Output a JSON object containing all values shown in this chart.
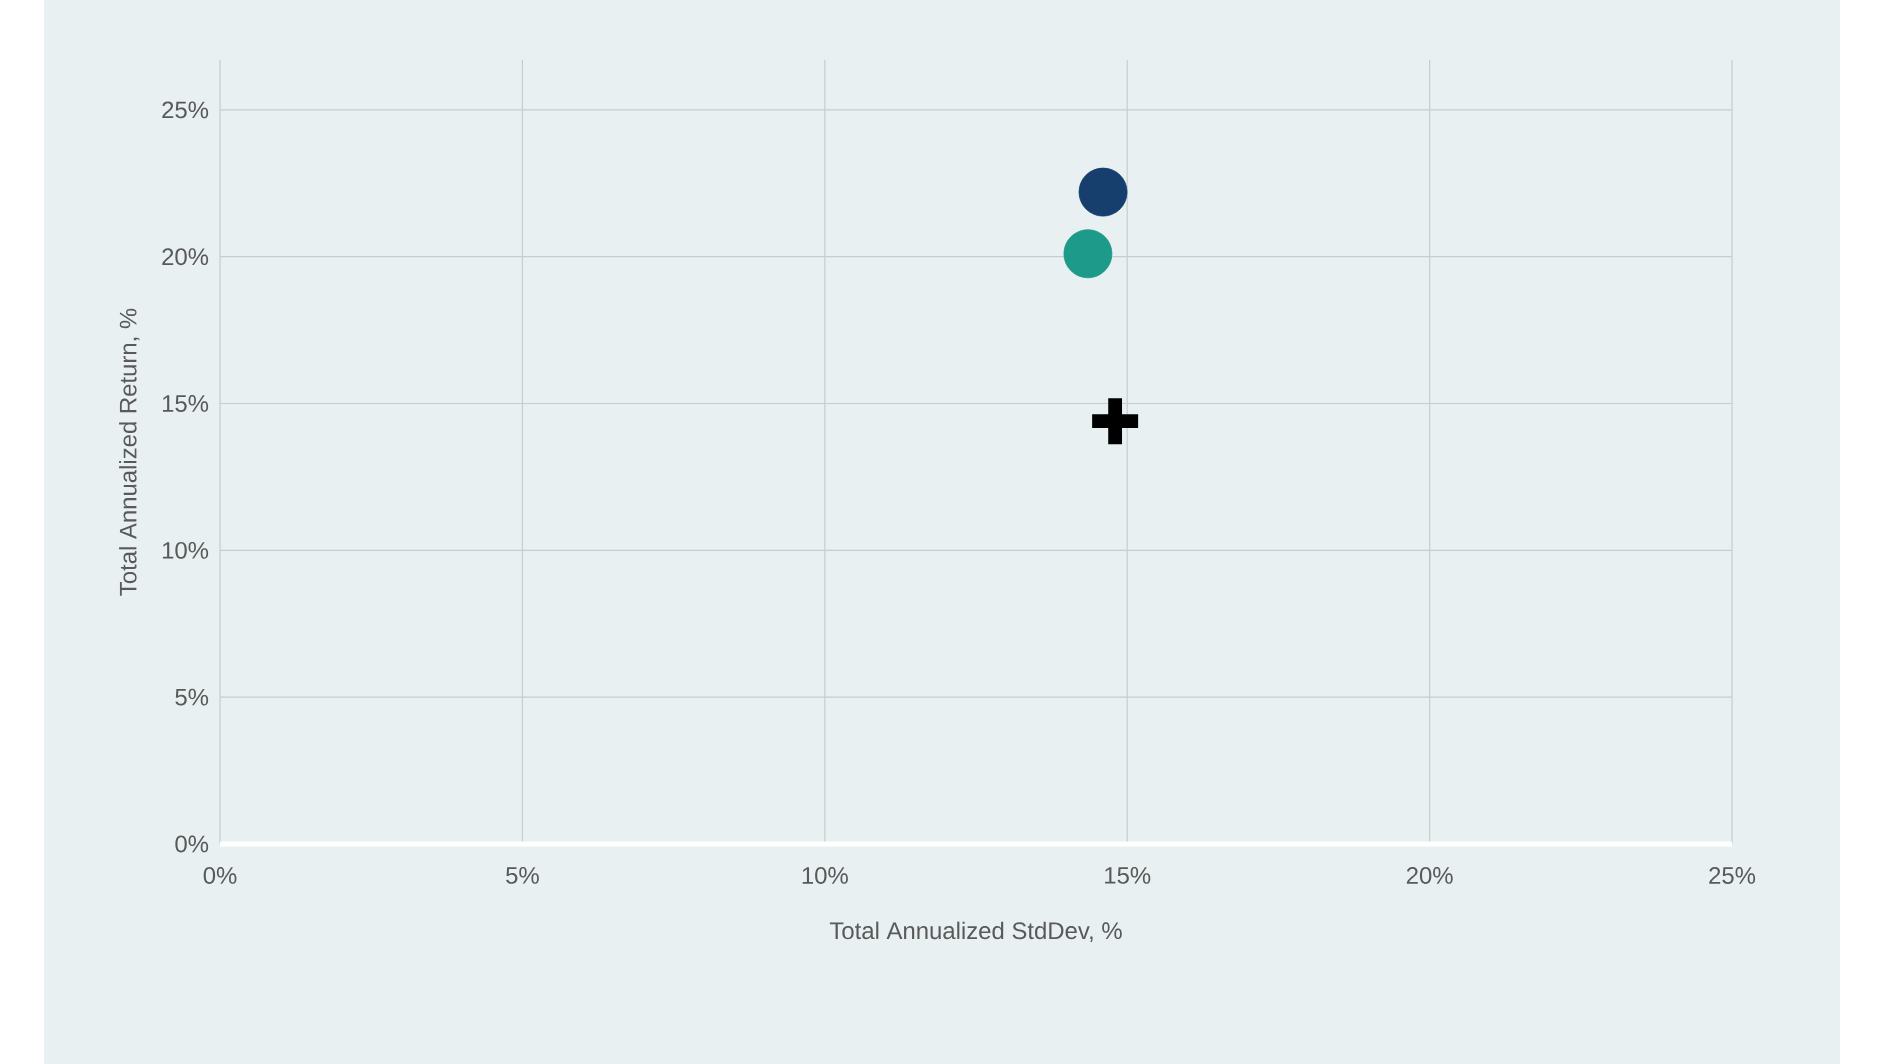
{
  "chart_data": {
    "type": "scatter",
    "xlabel": "Total Annualized StdDev, %",
    "ylabel": "Total Annualized Return, %",
    "xlim": [
      0,
      25
    ],
    "ylim": [
      0,
      26.7
    ],
    "xticks": [
      {
        "value": 0,
        "label": "0%"
      },
      {
        "value": 5,
        "label": "5%"
      },
      {
        "value": 10,
        "label": "10%"
      },
      {
        "value": 15,
        "label": "15%"
      },
      {
        "value": 20,
        "label": "20%"
      },
      {
        "value": 25,
        "label": "25%"
      }
    ],
    "yticks": [
      {
        "value": 0,
        "label": "0%"
      },
      {
        "value": 5,
        "label": "5%"
      },
      {
        "value": 10,
        "label": "10%"
      },
      {
        "value": 15,
        "label": "15%"
      },
      {
        "value": 20,
        "label": "20%"
      },
      {
        "value": 25,
        "label": "25%"
      }
    ],
    "grid": true,
    "series": [
      {
        "color": "#173f6e",
        "marker": "circle",
        "x": [
          14.6
        ],
        "values": [
          22.2
        ]
      },
      {
        "color": "#1e9a8a",
        "marker": "circle",
        "x": [
          14.35
        ],
        "values": [
          20.1
        ]
      },
      {
        "color": "#000000",
        "marker": "cross",
        "x": [
          14.8
        ],
        "values": [
          14.4
        ]
      }
    ]
  }
}
